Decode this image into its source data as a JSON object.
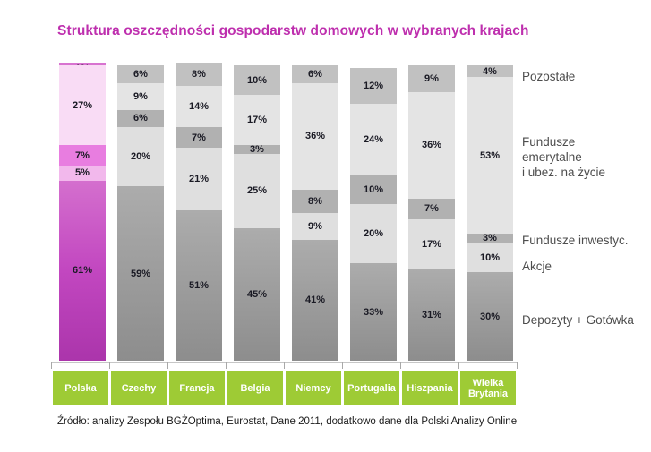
{
  "chart_data": {
    "type": "bar",
    "stacked": true,
    "title": "Struktura oszczędności gospodarstw domowych w wybranych krajach",
    "unit": "%",
    "categories": [
      "Polska",
      "Czechy",
      "Francja",
      "Belgia",
      "Niemcy",
      "Portugalia",
      "Hiszpania",
      "Wielka Brytania"
    ],
    "highlight_category": "Polska",
    "series": [
      {
        "name": "Depozyty + Gotówka",
        "values": [
          61,
          59,
          51,
          45,
          41,
          33,
          31,
          30
        ],
        "color_gray": [
          "#acacac",
          "#8d8d8d"
        ],
        "color_highlight": [
          "#d46fce",
          "#c247c0",
          "#ab35ab"
        ]
      },
      {
        "name": "Akcje",
        "values": [
          5,
          20,
          21,
          25,
          9,
          20,
          17,
          10
        ],
        "color_gray": [
          "#dfdfdf"
        ],
        "color_highlight": [
          "#f2b8ec"
        ]
      },
      {
        "name": "Fundusze inwestyc.",
        "values": [
          7,
          6,
          7,
          3,
          8,
          10,
          7,
          3
        ],
        "color_gray": [
          "#b1b1b1"
        ],
        "color_highlight": [
          "#e87de0"
        ]
      },
      {
        "name": "Fundusze emerytalne i ubez. na życie",
        "values": [
          27,
          9,
          14,
          17,
          36,
          24,
          36,
          53
        ],
        "color_gray": [
          "#e4e4e4"
        ],
        "color_highlight": [
          "#f9dcf5"
        ]
      },
      {
        "name": "Pozostałe",
        "values": [
          1,
          6,
          8,
          10,
          6,
          12,
          9,
          4
        ],
        "color_gray": [
          "#c1c1c1"
        ],
        "color_highlight": [
          "#d873d0"
        ]
      }
    ],
    "legend": [
      {
        "label": "Pozostałe"
      },
      {
        "label": "Fundusze\nemerytalne\ni ubez. na życie"
      },
      {
        "label": "Fundusze inwestyc."
      },
      {
        "label": "Akcje"
      },
      {
        "label": "Depozyty + Gotówka"
      }
    ],
    "axis": {
      "baseline_ticks": 9,
      "grid": false,
      "legend_position": "right"
    },
    "source": "Źródło: analizy Zespołu BGŻOptima, Eurostat, Dane 2011, dodatkowo dane dla Polski Analizy Online",
    "colors": {
      "title": "#be2fae",
      "category_box": "#9ecb35",
      "value_label_text": "#1a1a24",
      "legend_text": "#4d4d4d"
    }
  }
}
